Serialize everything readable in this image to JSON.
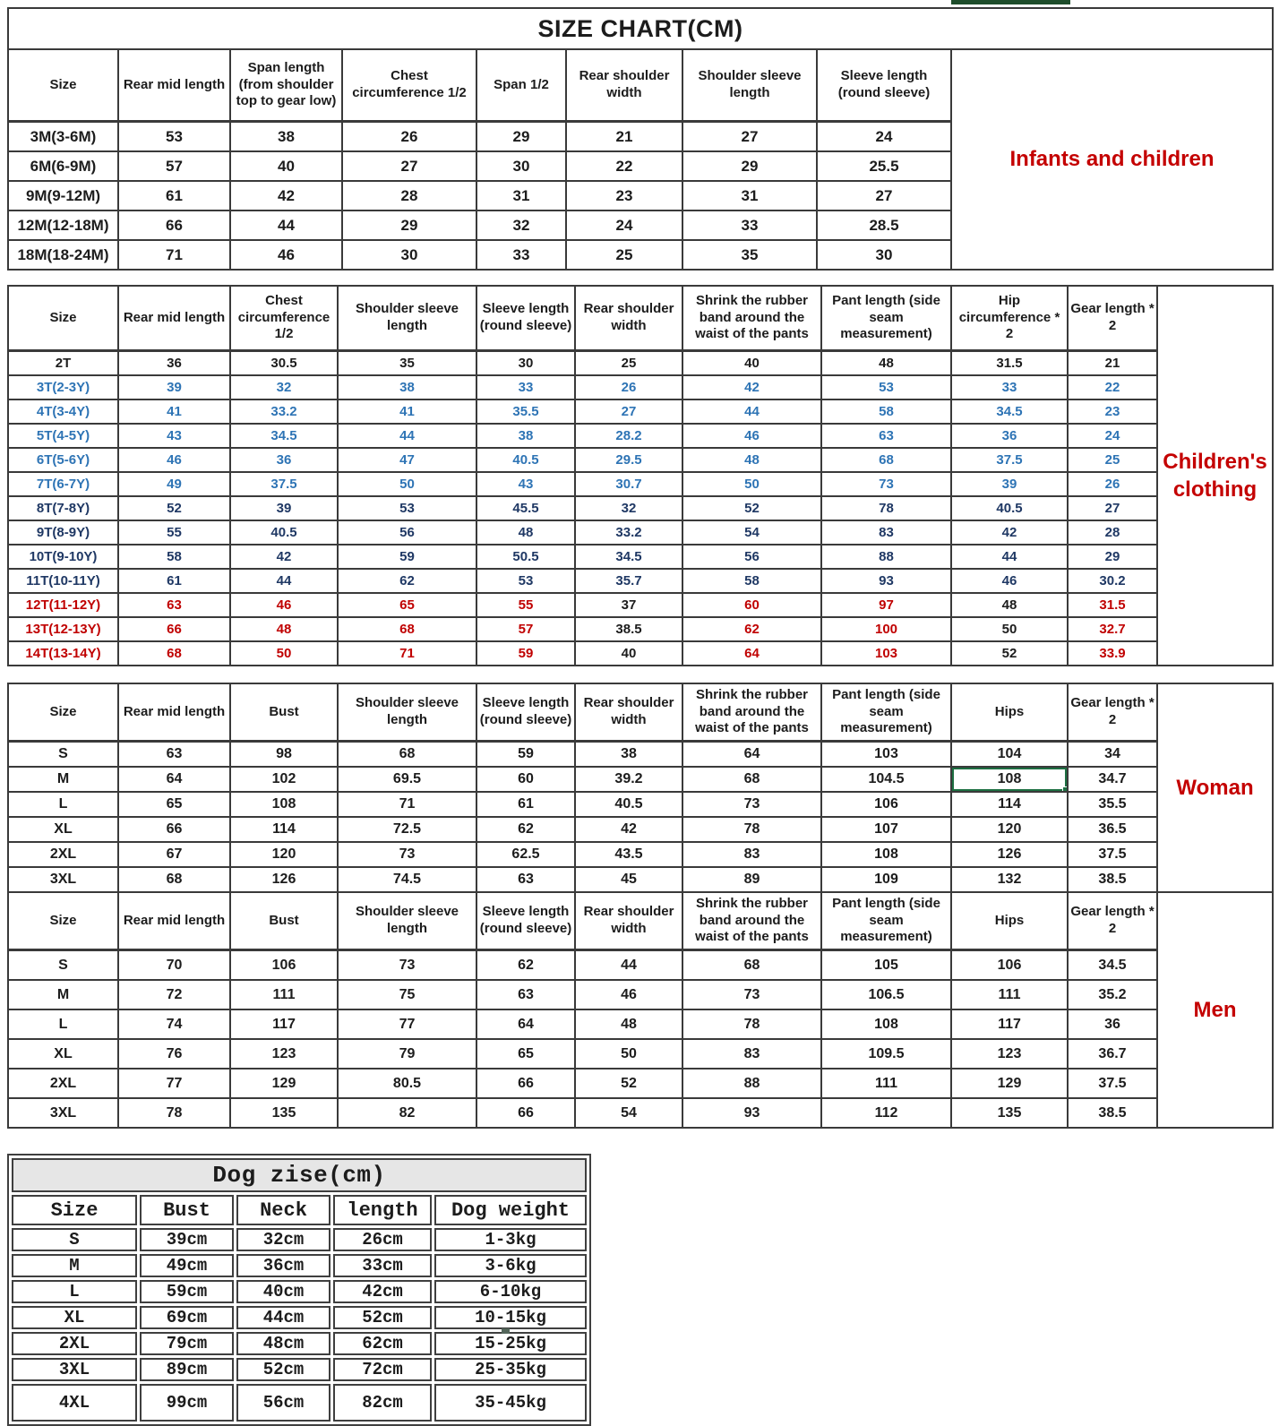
{
  "colors": {
    "accent_red": "#c40000",
    "data_blue": "#2e74b5",
    "data_navy": "#1f3864",
    "data_red": "#c00000",
    "excel_selection_green": "#1d6f42",
    "top_bar_green": "#1e4d2b"
  },
  "size_chart": {
    "title": "SIZE CHART(CM)",
    "label": "Infants and children",
    "headers": [
      "Size",
      "Rear mid length",
      "Span length (from shoulder top to gear low)",
      "Chest circumference 1/2",
      "Span 1/2",
      "Rear shoulder width",
      "Shoulder sleeve length",
      "Sleeve length (round sleeve)"
    ],
    "rows": [
      {
        "cells": [
          "3M(3-6M)",
          "53",
          "38",
          "26",
          "29",
          "21",
          "27",
          "24"
        ],
        "color": "black"
      },
      {
        "cells": [
          "6M(6-9M)",
          "57",
          "40",
          "27",
          "30",
          "22",
          "29",
          "25.5"
        ],
        "color": "black"
      },
      {
        "cells": [
          "9M(9-12M)",
          "61",
          "42",
          "28",
          "31",
          "23",
          "31",
          "27"
        ],
        "color": "black"
      },
      {
        "cells": [
          "12M(12-18M)",
          "66",
          "44",
          "29",
          "32",
          "24",
          "33",
          "28.5"
        ],
        "color": "black"
      },
      {
        "cells": [
          "18M(18-24M)",
          "71",
          "46",
          "30",
          "33",
          "25",
          "35",
          "30"
        ],
        "color": "black"
      }
    ]
  },
  "children": {
    "label": "Children's clothing",
    "headers": [
      "Size",
      "Rear mid length",
      "Chest circumference 1/2",
      "Shoulder sleeve length",
      "Sleeve length (round sleeve)",
      "Rear shoulder width",
      "Shrink the rubber band around the waist of the pants",
      "Pant length (side seam measurement)",
      "Hip circumference * 2",
      "Gear length * 2"
    ],
    "rows": [
      {
        "cells": [
          "2T",
          "36",
          "30.5",
          "35",
          "30",
          "25",
          "40",
          "48",
          "31.5",
          "21"
        ],
        "color": "black"
      },
      {
        "cells": [
          "3T(2-3Y)",
          "39",
          "32",
          "38",
          "33",
          "26",
          "42",
          "53",
          "33",
          "22"
        ],
        "color": "blue"
      },
      {
        "cells": [
          "4T(3-4Y)",
          "41",
          "33.2",
          "41",
          "35.5",
          "27",
          "44",
          "58",
          "34.5",
          "23"
        ],
        "color": "blue"
      },
      {
        "cells": [
          "5T(4-5Y)",
          "43",
          "34.5",
          "44",
          "38",
          "28.2",
          "46",
          "63",
          "36",
          "24"
        ],
        "color": "blue"
      },
      {
        "cells": [
          "6T(5-6Y)",
          "46",
          "36",
          "47",
          "40.5",
          "29.5",
          "48",
          "68",
          "37.5",
          "25"
        ],
        "color": "blue"
      },
      {
        "cells": [
          "7T(6-7Y)",
          "49",
          "37.5",
          "50",
          "43",
          "30.7",
          "50",
          "73",
          "39",
          "26"
        ],
        "color": "blue"
      },
      {
        "cells": [
          "8T(7-8Y)",
          "52",
          "39",
          "53",
          "45.5",
          "32",
          "52",
          "78",
          "40.5",
          "27"
        ],
        "color": "navy"
      },
      {
        "cells": [
          "9T(8-9Y)",
          "55",
          "40.5",
          "56",
          "48",
          "33.2",
          "54",
          "83",
          "42",
          "28"
        ],
        "color": "navy"
      },
      {
        "cells": [
          "10T(9-10Y)",
          "58",
          "42",
          "59",
          "50.5",
          "34.5",
          "56",
          "88",
          "44",
          "29"
        ],
        "color": "navy"
      },
      {
        "cells": [
          "11T(10-11Y)",
          "61",
          "44",
          "62",
          "53",
          "35.7",
          "58",
          "93",
          "46",
          "30.2"
        ],
        "color": "navy"
      },
      {
        "cells": [
          "12T(11-12Y)",
          "63",
          "46",
          "65",
          "55",
          "37",
          "60",
          "97",
          "48",
          "31.5"
        ],
        "color": "red",
        "overrides": {
          "5": "black",
          "8": "black"
        }
      },
      {
        "cells": [
          "13T(12-13Y)",
          "66",
          "48",
          "68",
          "57",
          "38.5",
          "62",
          "100",
          "50",
          "32.7"
        ],
        "color": "red",
        "overrides": {
          "5": "black",
          "8": "black"
        }
      },
      {
        "cells": [
          "14T(13-14Y)",
          "68",
          "50",
          "71",
          "59",
          "40",
          "64",
          "103",
          "52",
          "33.9"
        ],
        "color": "red",
        "overrides": {
          "5": "black",
          "8": "black"
        }
      }
    ]
  },
  "woman": {
    "label": "Woman",
    "headers": [
      "Size",
      "Rear mid length",
      "Bust",
      "Shoulder sleeve length",
      "Sleeve length (round sleeve)",
      "Rear shoulder width",
      "Shrink the rubber band around the waist of the pants",
      "Pant length (side seam measurement)",
      "Hips",
      "Gear length * 2"
    ],
    "selected_cell": {
      "row": 1,
      "col": 8
    },
    "rows": [
      {
        "cells": [
          "S",
          "63",
          "98",
          "68",
          "59",
          "38",
          "64",
          "103",
          "104",
          "34"
        ],
        "color": "black"
      },
      {
        "cells": [
          "M",
          "64",
          "102",
          "69.5",
          "60",
          "39.2",
          "68",
          "104.5",
          "108",
          "34.7"
        ],
        "color": "black"
      },
      {
        "cells": [
          "L",
          "65",
          "108",
          "71",
          "61",
          "40.5",
          "73",
          "106",
          "114",
          "35.5"
        ],
        "color": "black"
      },
      {
        "cells": [
          "XL",
          "66",
          "114",
          "72.5",
          "62",
          "42",
          "78",
          "107",
          "120",
          "36.5"
        ],
        "color": "black"
      },
      {
        "cells": [
          "2XL",
          "67",
          "120",
          "73",
          "62.5",
          "43.5",
          "83",
          "108",
          "126",
          "37.5"
        ],
        "color": "black"
      },
      {
        "cells": [
          "3XL",
          "68",
          "126",
          "74.5",
          "63",
          "45",
          "89",
          "109",
          "132",
          "38.5"
        ],
        "color": "black"
      }
    ]
  },
  "men": {
    "label": "Men",
    "headers": [
      "Size",
      "Rear mid length",
      "Bust",
      "Shoulder sleeve length",
      "Sleeve length (round sleeve)",
      "Rear shoulder width",
      "Shrink the rubber band around the waist of the pants",
      "Pant length (side seam measurement)",
      "Hips",
      "Gear length * 2"
    ],
    "rows": [
      {
        "cells": [
          "S",
          "70",
          "106",
          "73",
          "62",
          "44",
          "68",
          "105",
          "106",
          "34.5"
        ],
        "color": "black"
      },
      {
        "cells": [
          "M",
          "72",
          "111",
          "75",
          "63",
          "46",
          "73",
          "106.5",
          "111",
          "35.2"
        ],
        "color": "black"
      },
      {
        "cells": [
          "L",
          "74",
          "117",
          "77",
          "64",
          "48",
          "78",
          "108",
          "117",
          "36"
        ],
        "color": "black"
      },
      {
        "cells": [
          "XL",
          "76",
          "123",
          "79",
          "65",
          "50",
          "83",
          "109.5",
          "123",
          "36.7"
        ],
        "color": "black"
      },
      {
        "cells": [
          "2XL",
          "77",
          "129",
          "80.5",
          "66",
          "52",
          "88",
          "111",
          "129",
          "37.5"
        ],
        "color": "black"
      },
      {
        "cells": [
          "3XL",
          "78",
          "135",
          "82",
          "66",
          "54",
          "93",
          "112",
          "135",
          "38.5"
        ],
        "color": "black"
      }
    ]
  },
  "dog": {
    "title": "Dog zise(cm)",
    "headers": [
      "Size",
      "Bust",
      "Neck",
      "length",
      "Dog weight"
    ],
    "rows": [
      {
        "cells": [
          "S",
          "39cm",
          "32cm",
          "26cm",
          "1-3kg"
        ],
        "color": "black"
      },
      {
        "cells": [
          "M",
          "49cm",
          "36cm",
          "33cm",
          "3-6kg"
        ],
        "color": "black"
      },
      {
        "cells": [
          "L",
          "59cm",
          "40cm",
          "42cm",
          "6-10kg"
        ],
        "color": "black"
      },
      {
        "cells": [
          "XL",
          "69cm",
          "44cm",
          "52cm",
          "10-15kg"
        ],
        "color": "black"
      },
      {
        "cells": [
          "2XL",
          "79cm",
          "48cm",
          "62cm",
          "15-25kg"
        ],
        "color": "black"
      },
      {
        "cells": [
          "3XL",
          "89cm",
          "52cm",
          "72cm",
          "25-35kg"
        ],
        "color": "black"
      },
      {
        "cells": [
          "4XL",
          "99cm",
          "56cm",
          "82cm",
          "35-45kg"
        ],
        "color": "black"
      }
    ]
  }
}
